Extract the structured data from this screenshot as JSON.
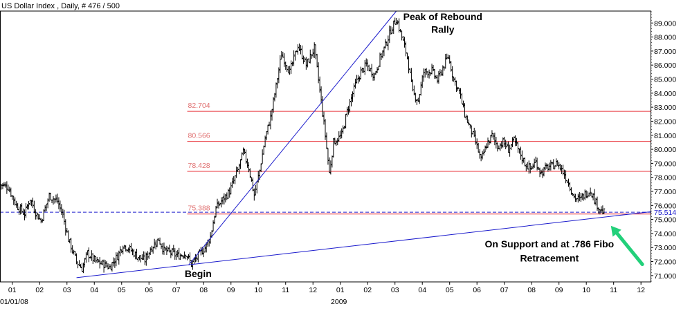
{
  "header": {
    "title": "US Dollar Index , Daily, # 476 / 500"
  },
  "colors": {
    "price": "#000000",
    "fib": "#e8343c",
    "fib_label": "#e07070",
    "trend": "#1a1acc",
    "support": "#1a1acc",
    "arrow": "#22d07a",
    "axis": "#000000",
    "frame_bg": "#ffffff"
  },
  "chart_data": {
    "type": "candlestick",
    "title": "US Dollar Index , Daily, # 476 / 500",
    "y_axis": {
      "position": "right",
      "ylim": [
        70.55,
        89.85
      ],
      "ticks": [
        71.0,
        72.0,
        73.0,
        74.0,
        75.0,
        76.0,
        77.0,
        78.0,
        79.0,
        80.0,
        81.0,
        82.0,
        83.0,
        84.0,
        85.0,
        86.0,
        87.0,
        88.0,
        89.0
      ],
      "tick_labels": [
        "71.000",
        "72.000",
        "73.000",
        "74.000",
        "75.000",
        "76.000",
        "77.000",
        "78.000",
        "79.000",
        "80.000",
        "81.000",
        "82.000",
        "83.000",
        "84.000",
        "85.000",
        "86.000",
        "87.000",
        "88.000",
        "89.000"
      ]
    },
    "x_axis": {
      "xlim": [
        0,
        23.8
      ],
      "month_ticks": [
        {
          "x": 0.45,
          "label": "01"
        },
        {
          "x": 1.45,
          "label": "02"
        },
        {
          "x": 2.45,
          "label": "03"
        },
        {
          "x": 3.45,
          "label": "04"
        },
        {
          "x": 4.45,
          "label": "05"
        },
        {
          "x": 5.45,
          "label": "06"
        },
        {
          "x": 6.45,
          "label": "07"
        },
        {
          "x": 7.45,
          "label": "08"
        },
        {
          "x": 8.45,
          "label": "09"
        },
        {
          "x": 9.45,
          "label": "10"
        },
        {
          "x": 10.45,
          "label": "11"
        },
        {
          "x": 11.45,
          "label": "12"
        },
        {
          "x": 12.45,
          "label": "01"
        },
        {
          "x": 13.45,
          "label": "02"
        },
        {
          "x": 14.45,
          "label": "03"
        },
        {
          "x": 15.45,
          "label": "04"
        },
        {
          "x": 16.45,
          "label": "05"
        },
        {
          "x": 17.45,
          "label": "06"
        },
        {
          "x": 18.45,
          "label": "07"
        },
        {
          "x": 19.45,
          "label": "08"
        },
        {
          "x": 20.45,
          "label": "09"
        },
        {
          "x": 21.45,
          "label": "10"
        },
        {
          "x": 22.45,
          "label": "11"
        },
        {
          "x": 23.45,
          "label": "12"
        }
      ],
      "year_labels": [
        {
          "x": 0.0,
          "label": "01/01/08"
        },
        {
          "x": 12.45,
          "label": "2009"
        }
      ]
    },
    "price_path": [
      [
        0.0,
        77.5
      ],
      [
        0.3,
        77.3
      ],
      [
        0.6,
        76.0
      ],
      [
        0.9,
        75.4
      ],
      [
        1.1,
        76.5
      ],
      [
        1.3,
        75.5
      ],
      [
        1.5,
        74.9
      ],
      [
        1.8,
        76.7
      ],
      [
        2.1,
        76.3
      ],
      [
        2.3,
        75.3
      ],
      [
        2.5,
        73.6
      ],
      [
        2.8,
        72.0
      ],
      [
        3.0,
        71.5
      ],
      [
        3.2,
        72.6
      ],
      [
        3.5,
        72.0
      ],
      [
        3.8,
        71.8
      ],
      [
        4.0,
        71.6
      ],
      [
        4.3,
        72.4
      ],
      [
        4.5,
        73.2
      ],
      [
        4.8,
        72.8
      ],
      [
        5.0,
        72.4
      ],
      [
        5.3,
        72.1
      ],
      [
        5.5,
        72.9
      ],
      [
        5.8,
        73.6
      ],
      [
        6.0,
        72.8
      ],
      [
        6.3,
        72.6
      ],
      [
        6.5,
        72.4
      ],
      [
        6.8,
        72.6
      ],
      [
        7.0,
        71.8
      ],
      [
        7.2,
        72.3
      ],
      [
        7.5,
        73.0
      ],
      [
        7.7,
        73.8
      ],
      [
        7.9,
        75.8
      ],
      [
        8.1,
        76.3
      ],
      [
        8.4,
        77.0
      ],
      [
        8.7,
        78.5
      ],
      [
        8.9,
        79.8
      ],
      [
        9.1,
        78.7
      ],
      [
        9.3,
        76.7
      ],
      [
        9.5,
        78.5
      ],
      [
        9.7,
        80.8
      ],
      [
        9.9,
        82.3
      ],
      [
        10.1,
        84.5
      ],
      [
        10.3,
        86.8
      ],
      [
        10.6,
        85.5
      ],
      [
        10.9,
        87.4
      ],
      [
        11.2,
        86.0
      ],
      [
        11.5,
        87.2
      ],
      [
        11.7,
        84.2
      ],
      [
        11.9,
        81.0
      ],
      [
        12.05,
        78.3
      ],
      [
        12.2,
        80.5
      ],
      [
        12.5,
        81.0
      ],
      [
        12.7,
        82.7
      ],
      [
        13.0,
        84.6
      ],
      [
        13.2,
        85.5
      ],
      [
        13.4,
        86.0
      ],
      [
        13.7,
        85.3
      ],
      [
        13.9,
        86.5
      ],
      [
        14.1,
        87.4
      ],
      [
        14.3,
        88.5
      ],
      [
        14.5,
        89.3
      ],
      [
        14.7,
        88.0
      ],
      [
        14.9,
        86.6
      ],
      [
        15.1,
        84.0
      ],
      [
        15.3,
        83.5
      ],
      [
        15.5,
        85.5
      ],
      [
        15.8,
        85.6
      ],
      [
        16.0,
        84.9
      ],
      [
        16.2,
        85.8
      ],
      [
        16.4,
        86.6
      ],
      [
        16.6,
        85.0
      ],
      [
        16.8,
        84.1
      ],
      [
        17.0,
        82.5
      ],
      [
        17.2,
        81.5
      ],
      [
        17.4,
        80.5
      ],
      [
        17.6,
        79.2
      ],
      [
        17.8,
        80.3
      ],
      [
        18.0,
        81.0
      ],
      [
        18.2,
        80.2
      ],
      [
        18.4,
        80.5
      ],
      [
        18.6,
        80.0
      ],
      [
        18.8,
        80.6
      ],
      [
        19.0,
        79.8
      ],
      [
        19.2,
        79.0
      ],
      [
        19.4,
        78.6
      ],
      [
        19.6,
        79.1
      ],
      [
        19.8,
        78.3
      ],
      [
        20.0,
        78.7
      ],
      [
        20.2,
        78.8
      ],
      [
        20.4,
        79.0
      ],
      [
        20.6,
        78.4
      ],
      [
        20.8,
        77.6
      ],
      [
        21.0,
        76.6
      ],
      [
        21.2,
        76.4
      ],
      [
        21.4,
        76.8
      ],
      [
        21.6,
        77.1
      ],
      [
        21.8,
        76.2
      ],
      [
        22.0,
        75.6
      ],
      [
        22.1,
        75.5
      ]
    ],
    "fibonacci_levels": [
      {
        "value": 82.704,
        "label": "82.704"
      },
      {
        "value": 80.566,
        "label": "80.566"
      },
      {
        "value": 78.428,
        "label": "78.428"
      },
      {
        "value": 75.388,
        "label": "75.388"
      }
    ],
    "fib_x_start": 6.85,
    "support_level": {
      "value": 75.514,
      "label": "75.514"
    },
    "trendlines": [
      {
        "name": "rally-trendline",
        "from": [
          6.9,
          71.75
        ],
        "to": [
          14.5,
          89.85
        ]
      },
      {
        "name": "support-trendline",
        "from": [
          2.8,
          70.85
        ],
        "to": [
          23.8,
          75.55
        ]
      }
    ],
    "annotations": [
      {
        "text": "Peak of Rebound",
        "x": 16.2,
        "y": 89.2
      },
      {
        "text": "Rally",
        "x": 16.2,
        "y": 88.3
      },
      {
        "text": "Begin",
        "x": 7.25,
        "y": 70.9
      },
      {
        "text": "On Support and at .786 Fibo",
        "x": 20.1,
        "y": 73.0
      },
      {
        "text": "Retracement",
        "x": 20.1,
        "y": 72.0
      }
    ],
    "arrow": {
      "from": [
        23.5,
        71.8
      ],
      "to": [
        22.35,
        74.55
      ]
    }
  }
}
